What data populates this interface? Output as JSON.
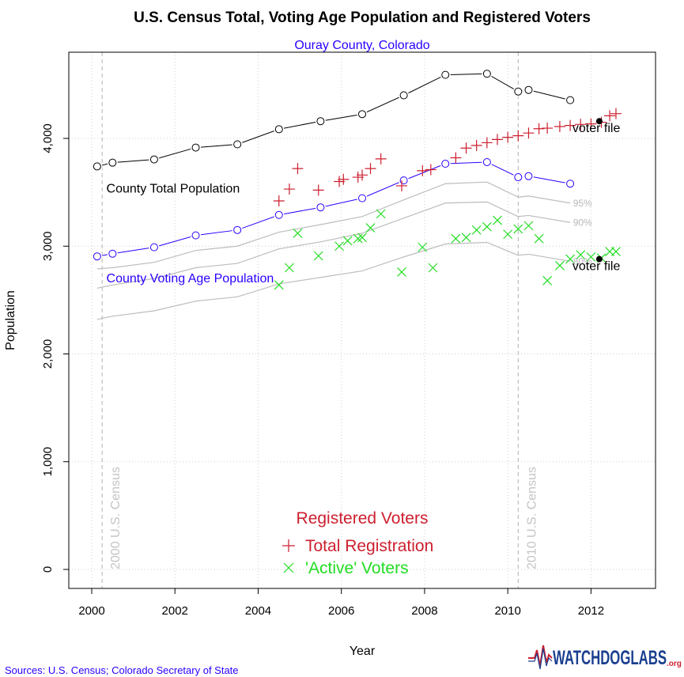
{
  "colors": {
    "total_pop": "#000000",
    "voting_age": "#2a00ff",
    "band": "#bdbdbd",
    "registration": "#cc1f2e",
    "active": "#22dd22",
    "census_line": "#b0b0b0",
    "grid": "#cfcfcf",
    "logo_blue": "#1a3f8f",
    "logo_red": "#cc1f2e"
  },
  "footer": {
    "sources": "Sources:  U.S. Census; Colorado Secretary of State",
    "logo_main": "WATCHDOGLABS",
    "logo_suffix": ".org"
  },
  "chart_data": {
    "type": "scatter",
    "title": "U.S. Census Total, Voting Age Population and Registered Voters",
    "subtitle": "Ouray County, Colorado",
    "xlabel": "Year",
    "ylabel": "Population",
    "xlim": [
      1999.4,
      2013.4
    ],
    "ylim": [
      -200,
      4800
    ],
    "grid": true,
    "x_ticks": [
      2000,
      2002,
      2004,
      2006,
      2008,
      2010,
      2012
    ],
    "x_tick_labels": [
      "2000",
      "2002",
      "2004",
      "2006",
      "2008",
      "2010",
      "2012"
    ],
    "y_ticks": [
      0,
      1000,
      2000,
      3000,
      4000
    ],
    "y_tick_labels": [
      "0",
      "1,000",
      "2,000",
      "3,000",
      "4,000"
    ],
    "census_lines": [
      {
        "x": 2000.25,
        "label": "2000 U.S. Census"
      },
      {
        "x": 2010.25,
        "label": "2010 U.S. Census"
      }
    ],
    "series": [
      {
        "name": "County Total Population",
        "kind": "line_circles",
        "segments": [
          [
            [
              2000.13,
              3740
            ],
            [
              2000.5,
              3775
            ],
            [
              2001.5,
              3805
            ],
            [
              2002.5,
              3915
            ],
            [
              2003.5,
              3945
            ],
            [
              2004.5,
              4085
            ],
            [
              2005.5,
              4160
            ],
            [
              2006.5,
              4225
            ],
            [
              2007.5,
              4400
            ],
            [
              2008.5,
              4590
            ],
            [
              2009.5,
              4600
            ],
            [
              2010.25,
              4435
            ]
          ],
          [
            [
              2010.25,
              4435
            ],
            [
              2010.5,
              4450
            ],
            [
              2011.5,
              4355
            ]
          ]
        ]
      },
      {
        "name": "County Voting Age Population",
        "kind": "line_circles",
        "segments": [
          [
            [
              2000.13,
              2905
            ],
            [
              2000.5,
              2930
            ],
            [
              2001.5,
              2990
            ],
            [
              2002.5,
              3100
            ],
            [
              2003.5,
              3150
            ],
            [
              2004.5,
              3290
            ],
            [
              2005.5,
              3360
            ],
            [
              2006.5,
              3445
            ],
            [
              2007.5,
              3610
            ],
            [
              2008.5,
              3765
            ],
            [
              2009.5,
              3780
            ],
            [
              2010.25,
              3640
            ]
          ],
          [
            [
              2010.25,
              3640
            ],
            [
              2010.5,
              3650
            ],
            [
              2011.5,
              3580
            ]
          ]
        ]
      },
      {
        "name": "Total Registration",
        "kind": "plus",
        "points": [
          [
            2004.5,
            3420
          ],
          [
            2004.75,
            3530
          ],
          [
            2004.95,
            3720
          ],
          [
            2005.45,
            3520
          ],
          [
            2005.95,
            3600
          ],
          [
            2006.05,
            3620
          ],
          [
            2006.4,
            3640
          ],
          [
            2006.5,
            3660
          ],
          [
            2006.7,
            3720
          ],
          [
            2006.95,
            3810
          ],
          [
            2007.45,
            3560
          ],
          [
            2007.95,
            3700
          ],
          [
            2008.15,
            3710
          ],
          [
            2008.75,
            3820
          ],
          [
            2009.0,
            3910
          ],
          [
            2009.25,
            3935
          ],
          [
            2009.5,
            3960
          ],
          [
            2009.75,
            3990
          ],
          [
            2010.0,
            4010
          ],
          [
            2010.25,
            4025
          ],
          [
            2010.5,
            4050
          ],
          [
            2010.75,
            4090
          ],
          [
            2010.95,
            4095
          ],
          [
            2011.25,
            4110
          ],
          [
            2011.5,
            4120
          ],
          [
            2011.75,
            4130
          ],
          [
            2012.0,
            4135
          ],
          [
            2012.25,
            4150
          ],
          [
            2012.45,
            4210
          ],
          [
            2012.6,
            4230
          ]
        ]
      },
      {
        "name": "'Active' Voters",
        "kind": "x",
        "points": [
          [
            2004.5,
            2640
          ],
          [
            2004.75,
            2800
          ],
          [
            2004.95,
            3120
          ],
          [
            2005.45,
            2910
          ],
          [
            2005.95,
            3000
          ],
          [
            2006.15,
            3050
          ],
          [
            2006.4,
            3070
          ],
          [
            2006.5,
            3080
          ],
          [
            2006.7,
            3170
          ],
          [
            2006.95,
            3300
          ],
          [
            2007.45,
            2760
          ],
          [
            2007.95,
            2990
          ],
          [
            2008.2,
            2800
          ],
          [
            2008.75,
            3070
          ],
          [
            2009.0,
            3080
          ],
          [
            2009.25,
            3150
          ],
          [
            2009.5,
            3180
          ],
          [
            2009.75,
            3240
          ],
          [
            2010.0,
            3110
          ],
          [
            2010.25,
            3160
          ],
          [
            2010.5,
            3190
          ],
          [
            2010.75,
            3070
          ],
          [
            2010.95,
            2680
          ],
          [
            2011.25,
            2820
          ],
          [
            2011.5,
            2880
          ],
          [
            2011.75,
            2920
          ],
          [
            2012.0,
            2900
          ],
          [
            2012.25,
            2890
          ],
          [
            2012.45,
            2950
          ],
          [
            2012.6,
            2950
          ]
        ]
      },
      {
        "name": "Band 95%",
        "kind": "band",
        "segments": [
          [
            [
              2000.13,
              2790
            ],
            [
              2000.5,
              2800
            ],
            [
              2001.5,
              2850
            ],
            [
              2002.5,
              2960
            ],
            [
              2003.5,
              3000
            ],
            [
              2004.5,
              3130
            ],
            [
              2005.5,
              3200
            ],
            [
              2006.5,
              3275
            ],
            [
              2007.5,
              3430
            ],
            [
              2008.5,
              3580
            ],
            [
              2009.5,
              3595
            ],
            [
              2010.25,
              3455
            ]
          ],
          [
            [
              2010.25,
              3455
            ],
            [
              2010.5,
              3465
            ],
            [
              2011.5,
              3400
            ]
          ]
        ]
      },
      {
        "name": "Band 90%",
        "kind": "band",
        "segments": [
          [
            [
              2000.13,
              2610
            ],
            [
              2000.5,
              2640
            ],
            [
              2001.5,
              2700
            ],
            [
              2002.5,
              2800
            ],
            [
              2003.5,
              2840
            ],
            [
              2004.5,
              2975
            ],
            [
              2005.5,
              3040
            ],
            [
              2006.5,
              3120
            ],
            [
              2007.5,
              3260
            ],
            [
              2008.5,
              3400
            ],
            [
              2009.5,
              3410
            ],
            [
              2010.25,
              3275
            ]
          ],
          [
            [
              2010.25,
              3275
            ],
            [
              2010.5,
              3285
            ],
            [
              2011.5,
              3220
            ]
          ]
        ]
      },
      {
        "name": "Band 80%",
        "kind": "band",
        "segments": [
          [
            [
              2000.13,
              2320
            ],
            [
              2000.5,
              2350
            ],
            [
              2001.5,
              2400
            ],
            [
              2002.5,
              2490
            ],
            [
              2003.5,
              2530
            ],
            [
              2004.5,
              2650
            ],
            [
              2005.5,
              2710
            ],
            [
              2006.5,
              2770
            ],
            [
              2007.5,
              2900
            ],
            [
              2008.5,
              3020
            ],
            [
              2009.5,
              3035
            ],
            [
              2010.25,
              2915
            ]
          ],
          [
            [
              2010.25,
              2915
            ],
            [
              2010.5,
              2925
            ],
            [
              2011.5,
              2860
            ]
          ]
        ]
      }
    ],
    "band_labels": [
      {
        "text": "95%",
        "x": 2011.55,
        "y": 3400
      },
      {
        "text": "90%",
        "x": 2011.55,
        "y": 3220
      },
      {
        "text": "80%",
        "x": 2011.55,
        "y": 2860
      }
    ],
    "voter_file": [
      {
        "label": "voter file",
        "x": 2012.2,
        "y": 4160
      },
      {
        "label": "voter file",
        "x": 2012.2,
        "y": 2880
      }
    ],
    "annotations": [
      {
        "text": "County Total Population",
        "series": "total",
        "x": 2000.2,
        "y": 3540
      },
      {
        "text": "County Voting Age Population",
        "series": "voting_age",
        "x": 2000.2,
        "y": 2710
      }
    ],
    "legend": {
      "title": "Registered Voters",
      "placement": "bottom-center",
      "items": [
        {
          "label": "Total Registration",
          "symbol": "plus"
        },
        {
          "label": "'Active' Voters",
          "symbol": "x"
        }
      ]
    }
  }
}
